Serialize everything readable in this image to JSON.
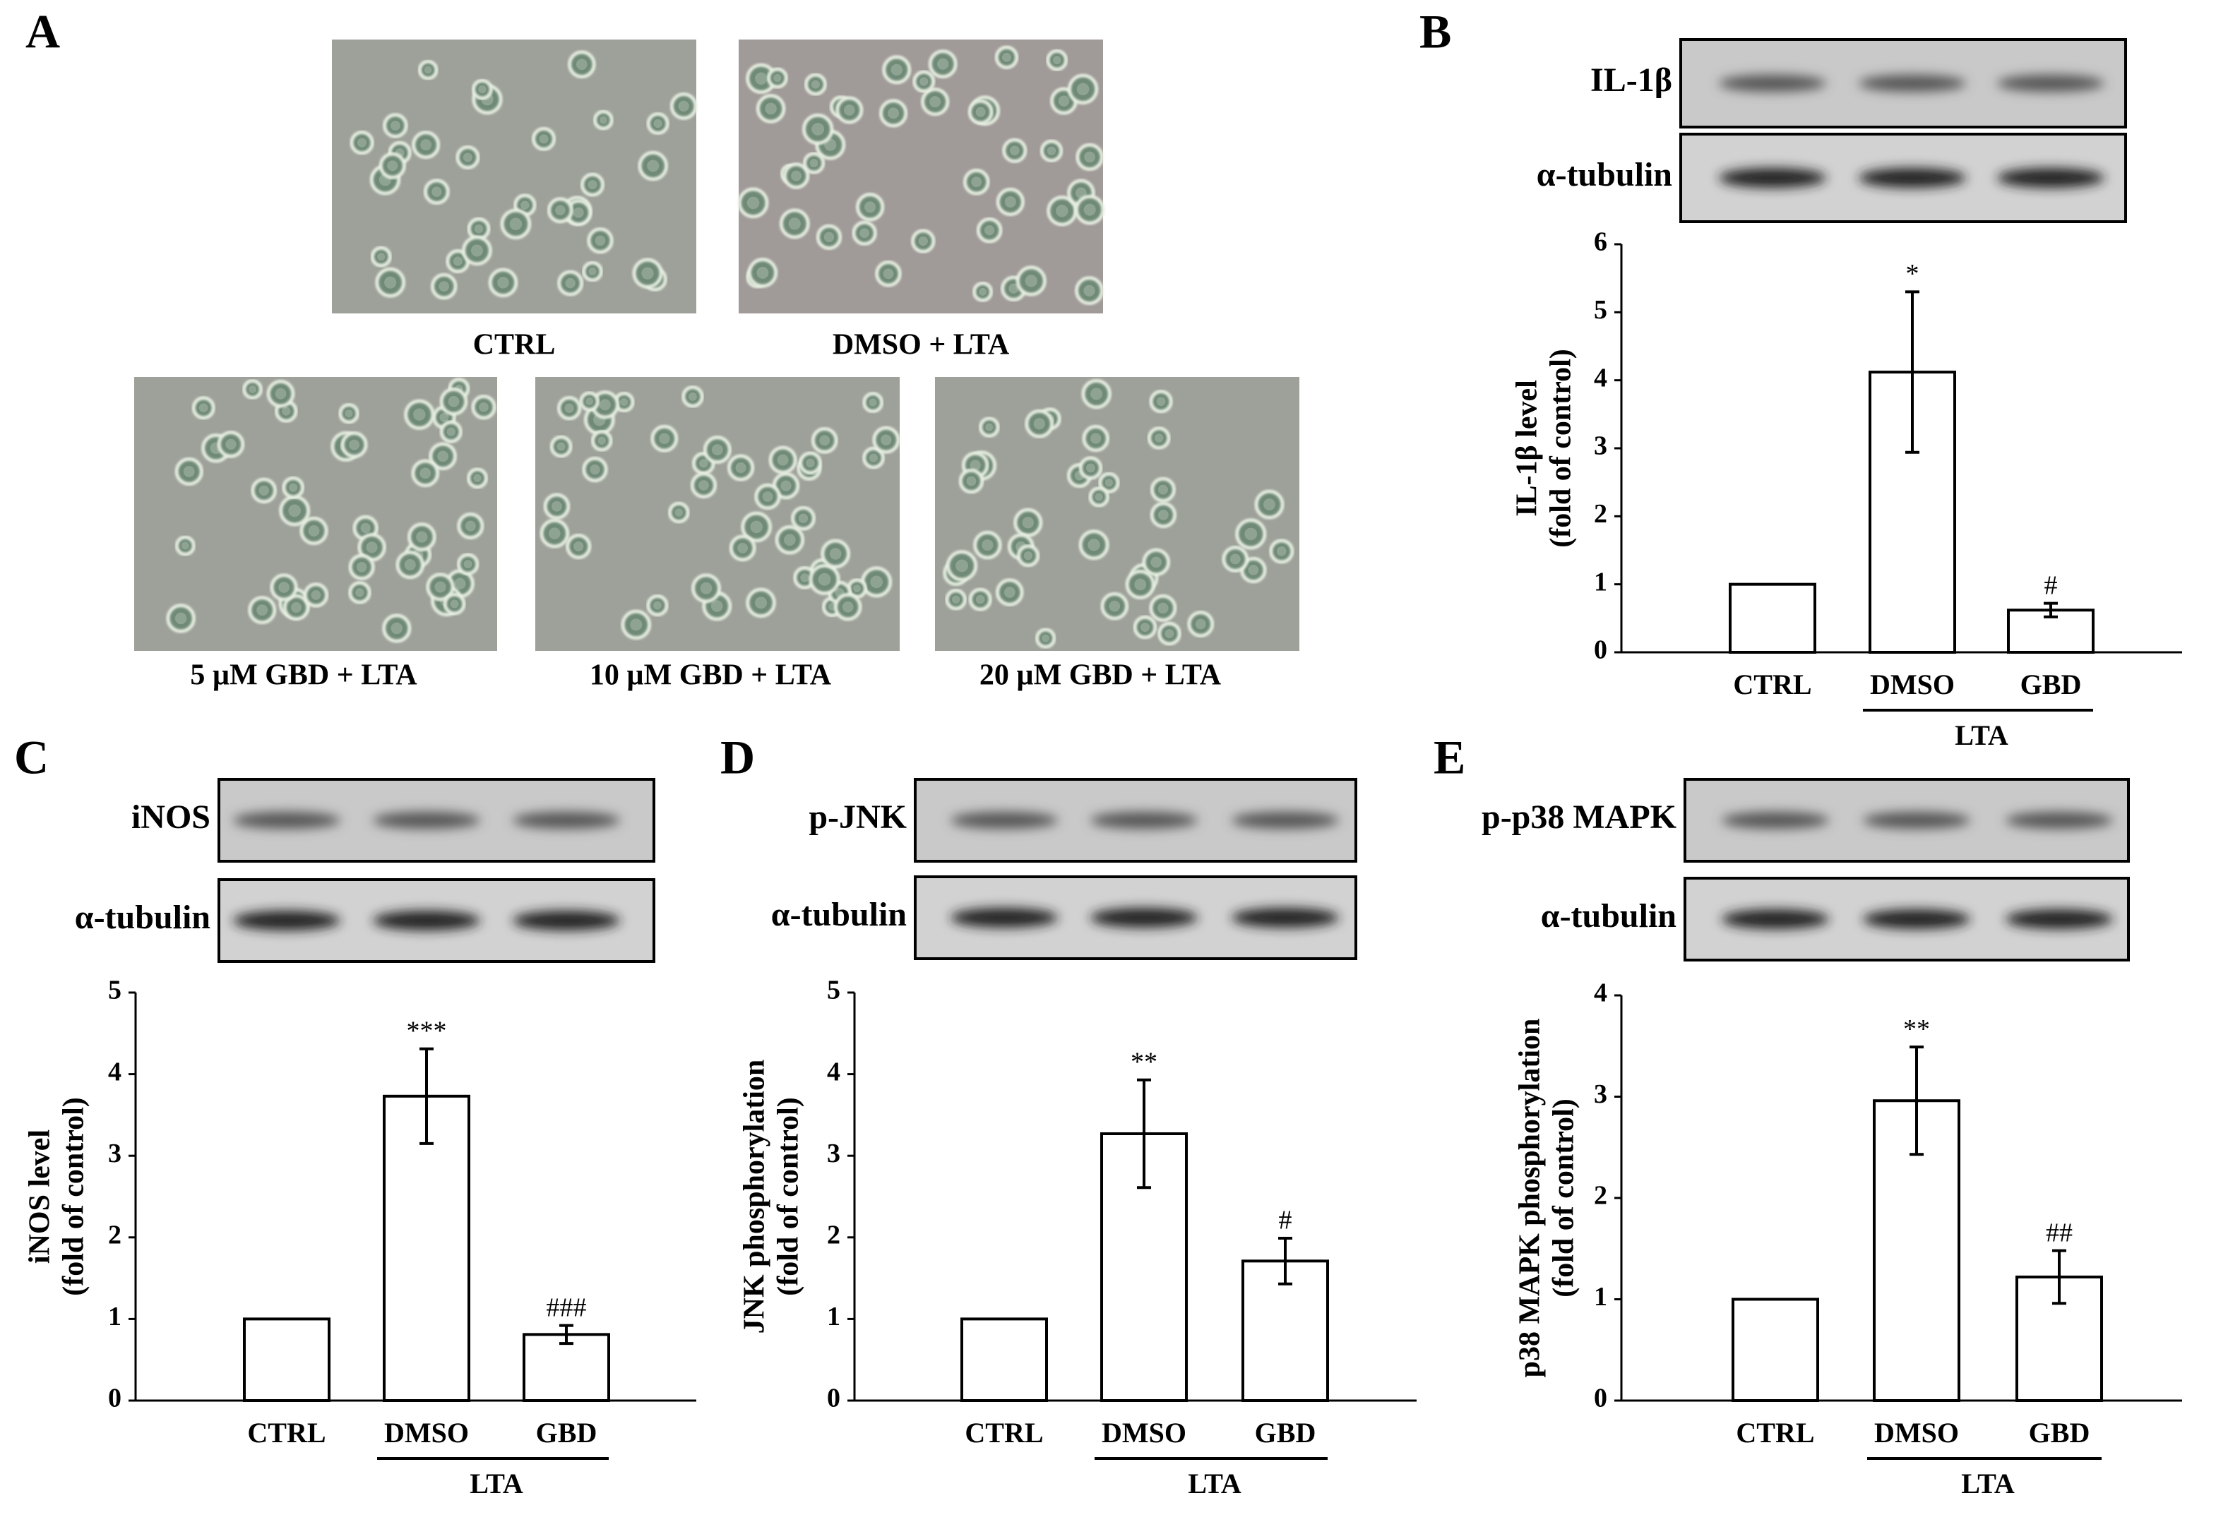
{
  "panel_a": {
    "label": "A",
    "captions": [
      "CTRL",
      "DMSO + LTA",
      "5 µM GBD + LTA",
      "10 µM GBD + LTA",
      "20 µM GBD + LTA"
    ]
  },
  "chart_data": [
    {
      "type": "bar",
      "panel": "B",
      "blot_labels": [
        "IL-1β",
        "α-tubulin"
      ],
      "ylabel": [
        "IL-1β level",
        "(fold of control)"
      ],
      "categories": [
        "CTRL",
        "DMSO",
        "GBD"
      ],
      "group_label": "LTA",
      "values": [
        1,
        4.12,
        0.62
      ],
      "errors": [
        null,
        1.18,
        0.1
      ],
      "annotations": [
        null,
        "*",
        "#"
      ],
      "ylim": [
        0,
        6
      ],
      "yticks": [
        0,
        1,
        2,
        3,
        4,
        5,
        6
      ],
      "color": "#ffffff"
    },
    {
      "type": "bar",
      "panel": "C",
      "blot_labels": [
        "iNOS",
        "α-tubulin"
      ],
      "ylabel": [
        "iNOS level",
        "(fold of control)"
      ],
      "categories": [
        "CTRL",
        "DMSO",
        "GBD"
      ],
      "group_label": "LTA",
      "values": [
        1,
        3.73,
        0.81
      ],
      "errors": [
        null,
        0.58,
        0.11
      ],
      "annotations": [
        null,
        "***",
        "###"
      ],
      "ylim": [
        0,
        5
      ],
      "yticks": [
        0,
        1,
        2,
        3,
        4,
        5
      ],
      "color": "#ffffff"
    },
    {
      "type": "bar",
      "panel": "D",
      "blot_labels": [
        "p-JNK",
        "α-tubulin"
      ],
      "ylabel": [
        "JNK phosphorylation",
        "(fold of control)"
      ],
      "categories": [
        "CTRL",
        "DMSO",
        "GBD"
      ],
      "group_label": "LTA",
      "values": [
        1,
        3.27,
        1.71
      ],
      "errors": [
        null,
        0.66,
        0.28
      ],
      "annotations": [
        null,
        "**",
        "#"
      ],
      "ylim": [
        0,
        5
      ],
      "yticks": [
        0,
        1,
        2,
        3,
        4,
        5
      ],
      "color": "#ffffff"
    },
    {
      "type": "bar",
      "panel": "E",
      "blot_labels": [
        "p-p38 MAPK",
        "α-tubulin"
      ],
      "ylabel": [
        "p38 MAPK phosphorylation",
        "(fold of control)"
      ],
      "categories": [
        "CTRL",
        "DMSO",
        "GBD"
      ],
      "group_label": "LTA",
      "values": [
        1,
        2.96,
        1.22
      ],
      "errors": [
        null,
        0.53,
        0.26
      ],
      "annotations": [
        null,
        "**",
        "##"
      ],
      "ylim": [
        0,
        4
      ],
      "yticks": [
        0,
        1,
        2,
        3,
        4
      ],
      "color": "#ffffff"
    }
  ]
}
